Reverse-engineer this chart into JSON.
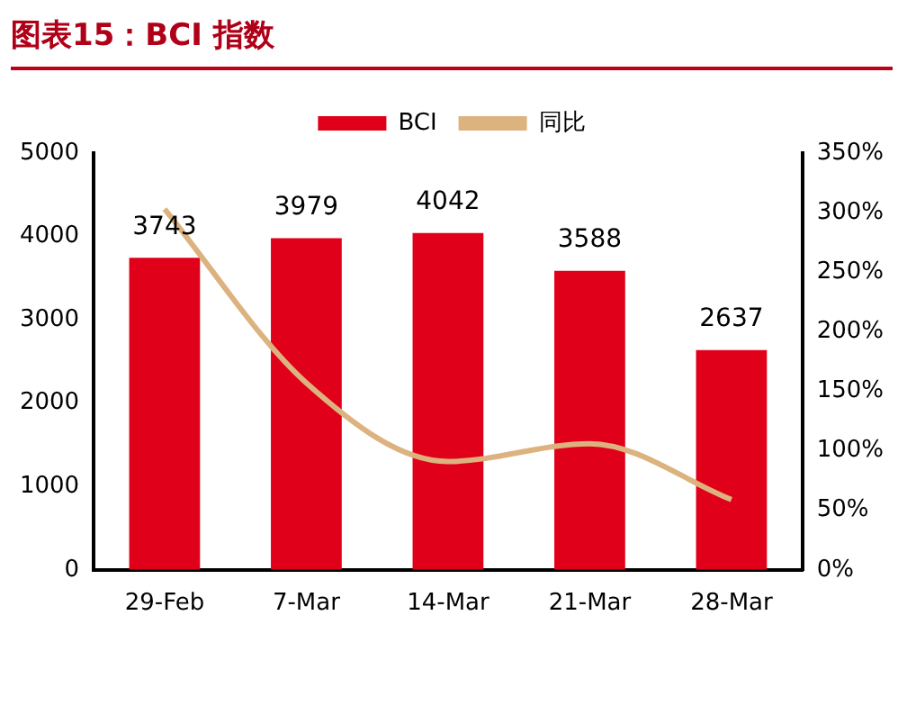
{
  "chart_data": {
    "type": "bar",
    "title": "图表15：BCI 指数",
    "categories": [
      "29-Feb",
      "7-Mar",
      "14-Mar",
      "21-Mar",
      "28-Mar"
    ],
    "series": [
      {
        "name": "BCI",
        "color": "#e1001a",
        "values": [
          3743,
          3979,
          4042,
          3588,
          2637
        ],
        "value_labels": [
          "3743",
          "3979",
          "4042",
          "3588",
          "2637"
        ]
      },
      {
        "name": "同比",
        "type": "line",
        "axis": "y2",
        "color": "#dcb27e",
        "values": [
          303,
          157,
          91,
          106,
          59
        ]
      }
    ],
    "ylim": [
      0,
      5000
    ],
    "yticks": [
      0,
      1000,
      2000,
      3000,
      4000,
      5000
    ],
    "y2lim": [
      0,
      350
    ],
    "y2ticks": [
      {
        "value": 0,
        "label": "0%"
      },
      {
        "value": 50,
        "label": "50%"
      },
      {
        "value": 100,
        "label": "100%"
      },
      {
        "value": 150,
        "label": "150%"
      },
      {
        "value": 200,
        "label": "200%"
      },
      {
        "value": 250,
        "label": "250%"
      },
      {
        "value": 300,
        "label": "300%"
      },
      {
        "value": 350,
        "label": "350%"
      }
    ],
    "grid": false,
    "legend": "top",
    "marker": "none",
    "line_style": "solid"
  }
}
